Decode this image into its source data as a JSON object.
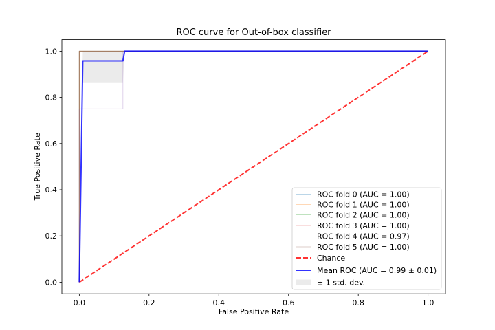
{
  "chart_data": {
    "type": "line",
    "title": "ROC curve for Out-of-box classifier",
    "xlabel": "False Positive Rate",
    "ylabel": "True Positive Rate",
    "xlim": [
      -0.05,
      1.05
    ],
    "ylim": [
      -0.05,
      1.05
    ],
    "xticks": [
      "0.0",
      "0.2",
      "0.4",
      "0.6",
      "0.8",
      "1.0"
    ],
    "yticks": [
      "0.0",
      "0.2",
      "0.4",
      "0.6",
      "0.8",
      "1.0"
    ],
    "grid": false,
    "legend_position": "lower right",
    "series": [
      {
        "name": "ROC fold 0 (AUC = 1.00)",
        "color": "#1f77b4",
        "x": [
          0,
          0,
          1
        ],
        "y": [
          0,
          1,
          1
        ]
      },
      {
        "name": "ROC fold 1 (AUC = 1.00)",
        "color": "#ff7f0e",
        "x": [
          0,
          0,
          1
        ],
        "y": [
          0,
          1,
          1
        ]
      },
      {
        "name": "ROC fold 2 (AUC = 1.00)",
        "color": "#2ca02c",
        "x": [
          0,
          0,
          1
        ],
        "y": [
          0,
          1,
          1
        ]
      },
      {
        "name": "ROC fold 3 (AUC = 1.00)",
        "color": "#d62728",
        "x": [
          0,
          0,
          1
        ],
        "y": [
          0,
          1,
          1
        ]
      },
      {
        "name": "ROC fold 4 (AUC = 0.97)",
        "color": "#9467bd",
        "x": [
          0,
          0,
          0.125,
          0.125,
          1
        ],
        "y": [
          0,
          0.75,
          0.75,
          1,
          1
        ]
      },
      {
        "name": "ROC fold 5 (AUC = 1.00)",
        "color": "#8c564b",
        "x": [
          0,
          0,
          1
        ],
        "y": [
          0,
          1,
          1
        ]
      },
      {
        "name": "Chance",
        "color": "#ff0000",
        "style": "dashed",
        "x": [
          0,
          1
        ],
        "y": [
          0,
          1
        ]
      },
      {
        "name": "Mean ROC (AUC = 0.99 ± 0.01)",
        "color": "#0000ff",
        "x": [
          0,
          0.01,
          0.125,
          0.13,
          1
        ],
        "y": [
          0,
          0.958,
          0.958,
          1,
          1
        ]
      }
    ],
    "std_band": {
      "name": "± 1 std. dev.",
      "color": "#999999",
      "x": [
        0,
        0.01,
        0.125,
        0.13,
        1
      ],
      "lower": [
        0,
        0.865,
        0.865,
        1,
        1
      ],
      "upper": [
        0,
        1,
        1,
        1,
        1
      ]
    }
  }
}
